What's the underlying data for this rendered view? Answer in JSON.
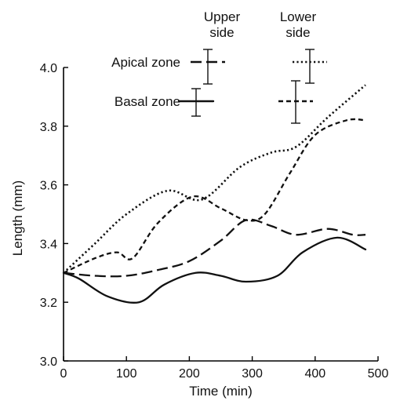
{
  "chart_data": {
    "type": "line",
    "xlabel": "Time (min)",
    "ylabel": "Length (mm)",
    "xlim": [
      0,
      500
    ],
    "ylim": [
      3.0,
      4.0
    ],
    "x_ticks": [
      0,
      100,
      200,
      300,
      400,
      500
    ],
    "y_ticks": [
      3.0,
      3.2,
      3.4,
      3.6,
      3.8,
      4.0
    ],
    "grid": false,
    "legend": {
      "placement": "top",
      "column_headers": [
        "Upper\nside",
        "Lower\nside"
      ],
      "row_labels": [
        "Apical zone",
        "Basal zone"
      ]
    },
    "series": [
      {
        "name": "Apical zone, upper side",
        "line_style": "long-dash",
        "x": [
          0,
          50,
          100,
          150,
          200,
          250,
          290,
          330,
          370,
          420,
          460,
          480
        ],
        "y": [
          3.3,
          3.29,
          3.29,
          3.31,
          3.34,
          3.41,
          3.48,
          3.46,
          3.43,
          3.45,
          3.43,
          3.43
        ]
      },
      {
        "name": "Apical zone, lower side",
        "line_style": "dotted",
        "x": [
          0,
          50,
          100,
          165,
          220,
          280,
          330,
          370,
          420,
          480
        ],
        "y": [
          3.3,
          3.4,
          3.5,
          3.58,
          3.55,
          3.66,
          3.71,
          3.73,
          3.83,
          3.94
        ]
      },
      {
        "name": "Basal zone, upper side",
        "line_style": "solid",
        "x": [
          0,
          25,
          70,
          120,
          160,
          210,
          250,
          290,
          340,
          380,
          435,
          480
        ],
        "y": [
          3.3,
          3.28,
          3.22,
          3.2,
          3.26,
          3.3,
          3.29,
          3.27,
          3.29,
          3.37,
          3.42,
          3.38
        ]
      },
      {
        "name": "Basal zone, lower side",
        "line_style": "short-dash",
        "x": [
          0,
          50,
          85,
          110,
          150,
          205,
          250,
          290,
          320,
          360,
          400,
          450,
          480
        ],
        "y": [
          3.3,
          3.35,
          3.37,
          3.35,
          3.47,
          3.56,
          3.52,
          3.48,
          3.5,
          3.64,
          3.77,
          3.82,
          3.82
        ]
      }
    ]
  }
}
